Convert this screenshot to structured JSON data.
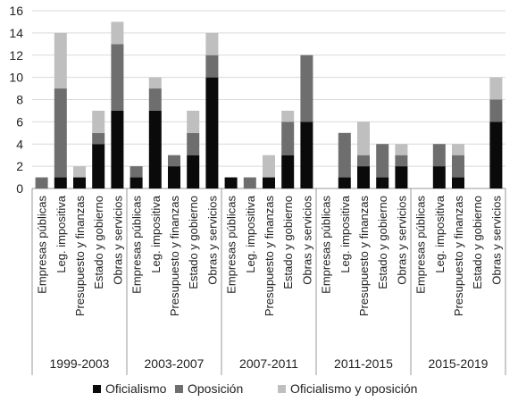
{
  "chart_data": {
    "type": "bar",
    "stacked": true,
    "grid": true,
    "legend_position": "bottom",
    "ylim": [
      0,
      16
    ],
    "yticks": [
      0,
      2,
      4,
      6,
      8,
      10,
      12,
      14,
      16
    ],
    "subcategories": [
      "Empresas públicas",
      "Leg. impositiva",
      "Presupuesto y finanzas",
      "Estado y gobierno",
      "Obras y servicios"
    ],
    "periods": [
      "1999-2003",
      "2003-2007",
      "2007-2011",
      "2011-2015",
      "2015-2019"
    ],
    "series": [
      {
        "name": "Oficialismo",
        "color": "#0a0a0a",
        "values": [
          [
            0,
            1,
            1,
            4,
            7
          ],
          [
            1,
            7,
            2,
            3,
            10
          ],
          [
            1,
            0,
            1,
            3,
            6
          ],
          [
            0,
            1,
            2,
            1,
            2
          ],
          [
            0,
            2,
            1,
            0,
            6
          ]
        ]
      },
      {
        "name": "Oposición",
        "color": "#6e6e6e",
        "values": [
          [
            1,
            8,
            0,
            1,
            6
          ],
          [
            1,
            2,
            1,
            2,
            2
          ],
          [
            0,
            1,
            0,
            3,
            6
          ],
          [
            0,
            4,
            1,
            3,
            1
          ],
          [
            0,
            2,
            2,
            0,
            2
          ]
        ]
      },
      {
        "name": "Oficialismo y oposición",
        "color": "#bfbfbf",
        "values": [
          [
            0,
            5,
            1,
            2,
            2
          ],
          [
            0,
            1,
            0,
            2,
            2
          ],
          [
            0,
            0,
            2,
            1,
            0
          ],
          [
            0,
            0,
            3,
            0,
            1
          ],
          [
            0,
            0,
            1,
            0,
            2
          ]
        ]
      }
    ]
  }
}
